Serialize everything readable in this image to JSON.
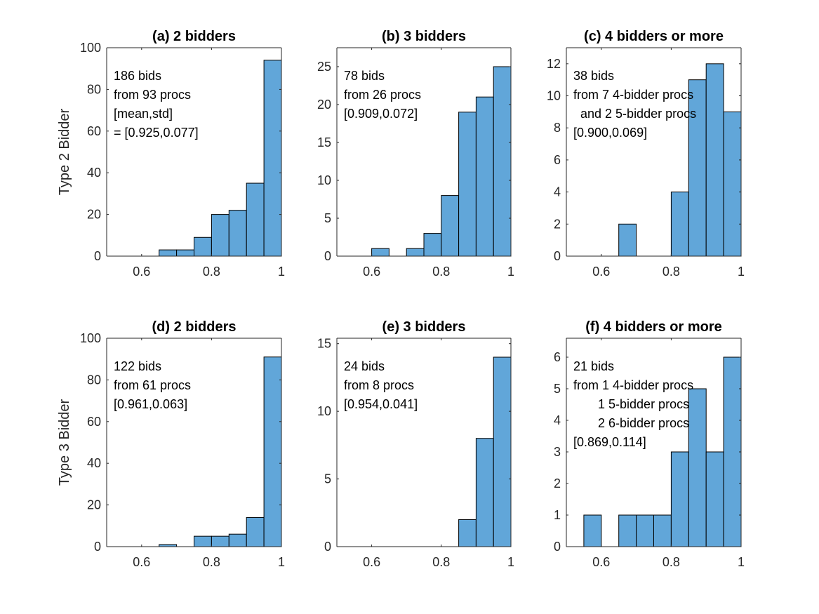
{
  "colors": {
    "bar": "#61a6d9",
    "edge": "#000000",
    "axis": "#262626"
  },
  "chart_data": [
    {
      "type": "bar",
      "panel": "a",
      "title": "(a) 2 bidders",
      "ylabel": "Type 2 Bidder",
      "bin_edges": [
        0.5,
        0.55,
        0.6,
        0.65,
        0.7,
        0.75,
        0.8,
        0.85,
        0.9,
        0.95,
        1.0
      ],
      "values": [
        0,
        0,
        0,
        3,
        3,
        9,
        20,
        22,
        35,
        94
      ],
      "xlim": [
        0.5,
        1.0
      ],
      "ylim": [
        0,
        100
      ],
      "xticks": [
        0.6,
        0.8,
        1
      ],
      "xtick_labels": [
        "0.6",
        "0.8",
        "1"
      ],
      "yticks": [
        0,
        20,
        40,
        60,
        80,
        100
      ],
      "ytick_labels": [
        "0",
        "20",
        "40",
        "60",
        "80",
        "100"
      ],
      "annotation": [
        "186 bids",
        "from 93 procs",
        "[mean,std]",
        "= [0.925,0.077]"
      ]
    },
    {
      "type": "bar",
      "panel": "b",
      "title": "(b) 3 bidders",
      "ylabel": "",
      "bin_edges": [
        0.5,
        0.55,
        0.6,
        0.65,
        0.7,
        0.75,
        0.8,
        0.85,
        0.9,
        0.95,
        1.0
      ],
      "values": [
        0,
        0,
        1,
        0,
        1,
        3,
        8,
        19,
        21,
        25
      ],
      "xlim": [
        0.5,
        1.0
      ],
      "ylim": [
        0,
        27.5
      ],
      "xticks": [
        0.6,
        0.8,
        1
      ],
      "xtick_labels": [
        "0.6",
        "0.8",
        "1"
      ],
      "yticks": [
        0,
        5,
        10,
        15,
        20,
        25
      ],
      "ytick_labels": [
        "0",
        "5",
        "10",
        "15",
        "20",
        "25"
      ],
      "annotation": [
        "78 bids",
        "from 26 procs",
        "[0.909,0.072]"
      ]
    },
    {
      "type": "bar",
      "panel": "c",
      "title": "(c) 4 bidders or more",
      "ylabel": "",
      "bin_edges": [
        0.5,
        0.55,
        0.6,
        0.65,
        0.7,
        0.75,
        0.8,
        0.85,
        0.9,
        0.95,
        1.0
      ],
      "values": [
        0,
        0,
        0,
        2,
        0,
        0,
        4,
        11,
        12,
        9
      ],
      "xlim": [
        0.5,
        1.0
      ],
      "ylim": [
        0,
        13
      ],
      "xticks": [
        0.6,
        0.8,
        1
      ],
      "xtick_labels": [
        "0.6",
        "0.8",
        "1"
      ],
      "yticks": [
        0,
        2,
        4,
        6,
        8,
        10,
        12
      ],
      "ytick_labels": [
        "0",
        "2",
        "4",
        "6",
        "8",
        "10",
        "12"
      ],
      "annotation": [
        "38 bids",
        "from 7 4-bidder procs",
        "  and 2 5-bidder procs",
        "[0.900,0.069]"
      ]
    },
    {
      "type": "bar",
      "panel": "d",
      "title": "(d) 2 bidders",
      "ylabel": "Type 3 Bidder",
      "bin_edges": [
        0.5,
        0.55,
        0.6,
        0.65,
        0.7,
        0.75,
        0.8,
        0.85,
        0.9,
        0.95,
        1.0
      ],
      "values": [
        0,
        0,
        0,
        1,
        0,
        5,
        5,
        6,
        14,
        91
      ],
      "xlim": [
        0.5,
        1.0
      ],
      "ylim": [
        0,
        100
      ],
      "xticks": [
        0.6,
        0.8,
        1
      ],
      "xtick_labels": [
        "0.6",
        "0.8",
        "1"
      ],
      "yticks": [
        0,
        20,
        40,
        60,
        80,
        100
      ],
      "ytick_labels": [
        "0",
        "20",
        "40",
        "60",
        "80",
        "100"
      ],
      "annotation": [
        "122 bids",
        "from 61 procs",
        "[0.961,0.063]"
      ]
    },
    {
      "type": "bar",
      "panel": "e",
      "title": "(e) 3 bidders",
      "ylabel": "",
      "bin_edges": [
        0.5,
        0.55,
        0.6,
        0.65,
        0.7,
        0.75,
        0.8,
        0.85,
        0.9,
        0.95,
        1.0
      ],
      "values": [
        0,
        0,
        0,
        0,
        0,
        0,
        0,
        2,
        8,
        14
      ],
      "xlim": [
        0.5,
        1.0
      ],
      "ylim": [
        0,
        15.4
      ],
      "xticks": [
        0.6,
        0.8,
        1
      ],
      "xtick_labels": [
        "0.6",
        "0.8",
        "1"
      ],
      "yticks": [
        0,
        5,
        10,
        15
      ],
      "ytick_labels": [
        "0",
        "5",
        "10",
        "15"
      ],
      "annotation": [
        "24 bids",
        "from 8 procs",
        "[0.954,0.041]"
      ]
    },
    {
      "type": "bar",
      "panel": "f",
      "title": "(f) 4 bidders or more",
      "ylabel": "",
      "bin_edges": [
        0.5,
        0.55,
        0.6,
        0.65,
        0.7,
        0.75,
        0.8,
        0.85,
        0.9,
        0.95,
        1.0
      ],
      "values": [
        0,
        1,
        0,
        1,
        1,
        1,
        3,
        5,
        3,
        6
      ],
      "xlim": [
        0.5,
        1.0
      ],
      "ylim": [
        0,
        6.6
      ],
      "xticks": [
        0.6,
        0.8,
        1
      ],
      "xtick_labels": [
        "0.6",
        "0.8",
        "1"
      ],
      "yticks": [
        0,
        1,
        2,
        3,
        4,
        5,
        6
      ],
      "ytick_labels": [
        "0",
        "1",
        "2",
        "3",
        "4",
        "5",
        "6"
      ],
      "annotation": [
        "21 bids",
        "from 1 4-bidder procs",
        "       1 5-bidder procs",
        "       2 6-bidder procs",
        "[0.869,0.114]"
      ]
    }
  ]
}
